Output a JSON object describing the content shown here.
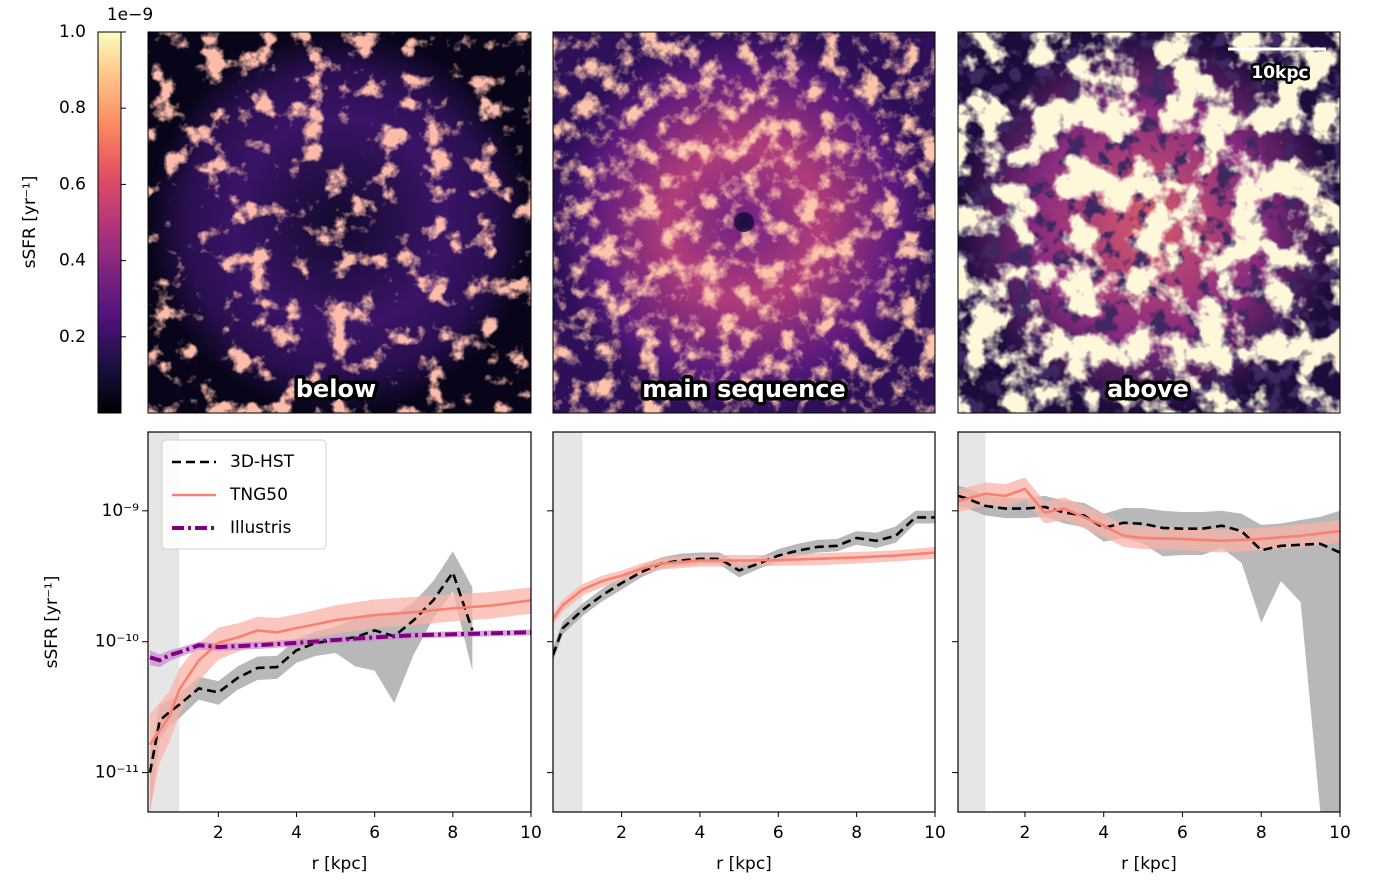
{
  "colorbar": {
    "label": "sSFR [yr⁻¹]",
    "offset_text": "1e−9",
    "clim": [
      0,
      1
    ],
    "ticks": [
      0.2,
      0.4,
      0.6,
      0.8,
      {
        "value": 1,
        "label": "1.0"
      }
    ],
    "colormap": "magma"
  },
  "maps": [
    {
      "label": "below"
    },
    {
      "label": "main sequence"
    },
    {
      "label": "above",
      "scale_bar": "10kpc"
    }
  ],
  "chart_data": [
    {
      "type": "line",
      "xlabel": "r [kpc]",
      "ylabel": "sSFR [yr⁻¹]",
      "xlim": [
        0.2,
        10
      ],
      "ylim": [
        5e-12,
        4e-09
      ],
      "yscale": "log",
      "xticks": [
        2,
        4,
        6,
        8,
        10
      ],
      "yticks": [
        {
          "value": 1e-11,
          "label": "10⁻¹¹"
        },
        {
          "value": 1e-10,
          "label": "10⁻¹⁰"
        },
        {
          "value": 1e-09,
          "label": "10⁻⁹"
        }
      ],
      "shaded_region": [
        0,
        1
      ],
      "legend": "upper left",
      "series": [
        {
          "name": "3D-HST",
          "color": "#000000",
          "band_color": "#a0a0a0",
          "style": "dashed",
          "x": [
            0.25,
            0.5,
            0.75,
            1,
            1.5,
            2,
            2.5,
            3,
            3.5,
            4,
            4.5,
            5,
            5.5,
            6,
            6.5,
            7,
            7.5,
            8,
            8.5
          ],
          "values": [
            1e-11,
            2.5e-11,
            2.9e-11,
            3.3e-11,
            4.4e-11,
            4.1e-11,
            5.3e-11,
            6.3e-11,
            6.4e-11,
            8.6e-11,
            9.8e-11,
            1.03e-10,
            1.08e-10,
            1.22e-10,
            1.1e-10,
            1.46e-10,
            2.07e-10,
            3.38e-10,
            1.22e-10
          ],
          "lower": [
            5e-12,
            1.8e-11,
            2.3e-11,
            2.6e-11,
            3.6e-11,
            3.3e-11,
            4.3e-11,
            5.1e-11,
            5.2e-11,
            6.9e-11,
            7.8e-11,
            8.2e-11,
            6.5e-11,
            6e-11,
            3.4e-11,
            8e-11,
            1.5e-10,
            2.4e-10,
            6e-11
          ],
          "upper": [
            1.4e-11,
            3.3e-11,
            3.6e-11,
            4e-11,
            5.4e-11,
            5e-11,
            6.5e-11,
            7.7e-11,
            7.8e-11,
            1.05e-10,
            1.2e-10,
            1.3e-10,
            1.5e-10,
            1.6e-10,
            1.6e-10,
            2e-10,
            2.9e-10,
            4.9e-10,
            2.6e-10
          ]
        },
        {
          "name": "TNG50",
          "color": "#fa8072",
          "band_color": "#f9b3a8",
          "style": "solid",
          "x": [
            0.25,
            0.5,
            0.75,
            1,
            1.5,
            2,
            2.5,
            3,
            3.5,
            4,
            4.5,
            5,
            6,
            7,
            8,
            9,
            10
          ],
          "values": [
            1.63e-11,
            2.1e-11,
            2.7e-11,
            4.3e-11,
            7.2e-11,
            9.8e-11,
            1.08e-10,
            1.22e-10,
            1.18e-10,
            1.27e-10,
            1.36e-10,
            1.46e-10,
            1.6e-10,
            1.68e-10,
            1.8e-10,
            1.89e-10,
            2.07e-10
          ],
          "lower": [
            5e-12,
            1.2e-11,
            1.7e-11,
            2.8e-11,
            5e-11,
            7.3e-11,
            8.4e-11,
            9.6e-11,
            9.4e-11,
            1.01e-10,
            1.08e-10,
            1.15e-10,
            1.27e-10,
            1.34e-10,
            1.43e-10,
            1.5e-10,
            1.64e-10
          ],
          "upper": [
            2.8e-11,
            3.4e-11,
            4.2e-11,
            6.2e-11,
            9.8e-11,
            1.28e-10,
            1.38e-10,
            1.55e-10,
            1.52e-10,
            1.62e-10,
            1.75e-10,
            1.9e-10,
            2.1e-10,
            2.2e-10,
            2.3e-10,
            2.4e-10,
            2.6e-10
          ]
        },
        {
          "name": "Illustris",
          "color": "#800080",
          "band_color": "#c98ccf",
          "style": "dashdot",
          "x": [
            0.25,
            0.5,
            0.75,
            1,
            1.5,
            2,
            3,
            4,
            5,
            6,
            7,
            8,
            9,
            10
          ],
          "values": [
            7.6e-11,
            7.2e-11,
            7.9e-11,
            8.3e-11,
            9.4e-11,
            9.1e-11,
            9.4e-11,
            9.8e-11,
            1.03e-10,
            1.08e-10,
            1.12e-10,
            1.14e-10,
            1.16e-10,
            1.18e-10
          ],
          "lower": [
            6.6e-11,
            6.4e-11,
            7.1e-11,
            7.6e-11,
            8.7e-11,
            8.5e-11,
            8.8e-11,
            9.2e-11,
            9.7e-11,
            1.02e-10,
            1.06e-10,
            1.08e-10,
            1.1e-10,
            1.12e-10
          ],
          "upper": [
            8.6e-11,
            8e-11,
            8.6e-11,
            9e-11,
            1e-10,
            9.7e-11,
            1e-10,
            1.04e-10,
            1.09e-10,
            1.14e-10,
            1.18e-10,
            1.2e-10,
            1.22e-10,
            1.24e-10
          ]
        }
      ]
    },
    {
      "type": "line",
      "xlabel": "r [kpc]",
      "xlim": [
        0.25,
        10
      ],
      "ylim": [
        5e-12,
        4e-09
      ],
      "yscale": "log",
      "xticks": [
        2,
        4,
        6,
        8,
        10
      ],
      "yticks": [
        1e-11,
        1e-10,
        1e-09
      ],
      "shaded_region": [
        0,
        1
      ],
      "series": [
        {
          "color": "#000000",
          "band_color": "#a0a0a0",
          "style": "dashed",
          "x": [
            0.25,
            0.5,
            1,
            1.5,
            2,
            2.5,
            3,
            3.5,
            4,
            4.5,
            5,
            5.5,
            6,
            6.5,
            7,
            7.5,
            8,
            8.5,
            9,
            9.5,
            10
          ],
          "values": [
            7.9e-11,
            1.27e-10,
            1.74e-10,
            2.26e-10,
            2.8e-10,
            3.4e-10,
            3.95e-10,
            4.17e-10,
            4.3e-10,
            4.3e-10,
            3.5e-10,
            3.95e-10,
            4.55e-10,
            4.96e-10,
            5.3e-10,
            5.4e-10,
            6.2e-10,
            5.9e-10,
            6.45e-10,
            8.9e-10,
            8.9e-10
          ],
          "lower": [
            7.1e-11,
            1.14e-10,
            1.57e-10,
            2.03e-10,
            2.5e-10,
            3.1e-10,
            3.6e-10,
            3.8e-10,
            3.9e-10,
            3.9e-10,
            3.1e-10,
            3.6e-10,
            4.1e-10,
            4.5e-10,
            4.8e-10,
            4.9e-10,
            5.5e-10,
            5.2e-10,
            5.7e-10,
            8e-10,
            8e-10
          ],
          "upper": [
            8.9e-11,
            1.42e-10,
            1.95e-10,
            2.53e-10,
            3.1e-10,
            3.8e-10,
            4.4e-10,
            4.7e-10,
            4.8e-10,
            4.8e-10,
            4e-10,
            4.4e-10,
            5.1e-10,
            5.6e-10,
            6e-10,
            6.1e-10,
            7e-10,
            6.8e-10,
            7.6e-10,
            1e-09,
            1e-09
          ]
        },
        {
          "color": "#fa8072",
          "band_color": "#f9b3a8",
          "style": "solid",
          "x": [
            0.25,
            0.5,
            1,
            1.5,
            2,
            2.5,
            3,
            4,
            5,
            6,
            7,
            8,
            9,
            10
          ],
          "values": [
            1.5e-10,
            1.9e-10,
            2.5e-10,
            2.9e-10,
            3.2e-10,
            3.6e-10,
            3.95e-10,
            4.17e-10,
            4.17e-10,
            4.2e-10,
            4.3e-10,
            4.4e-10,
            4.55e-10,
            4.8e-10
          ],
          "lower": [
            1.35e-10,
            1.7e-10,
            2.25e-10,
            2.6e-10,
            2.9e-10,
            3.25e-10,
            3.55e-10,
            3.75e-10,
            3.75e-10,
            3.8e-10,
            3.85e-10,
            3.95e-10,
            4.1e-10,
            4.3e-10
          ],
          "upper": [
            1.65e-10,
            2.1e-10,
            2.75e-10,
            3.2e-10,
            3.5e-10,
            3.95e-10,
            4.35e-10,
            4.6e-10,
            4.6e-10,
            4.6e-10,
            4.75e-10,
            4.85e-10,
            5e-10,
            5.3e-10
          ]
        }
      ]
    },
    {
      "type": "line",
      "xlabel": "r [kpc]",
      "xlim": [
        0.3,
        10
      ],
      "ylim": [
        5e-12,
        4e-09
      ],
      "yscale": "log",
      "xticks": [
        2,
        4,
        6,
        8,
        10
      ],
      "yticks": [
        1e-11,
        1e-10,
        1e-09
      ],
      "shaded_region": [
        0,
        1
      ],
      "series": [
        {
          "color": "#000000",
          "band_color": "#a0a0a0",
          "style": "dashed",
          "x": [
            0.3,
            0.5,
            1,
            1.5,
            2,
            2.5,
            3,
            3.5,
            4,
            4.5,
            5,
            5.5,
            6,
            6.5,
            7,
            7.5,
            8,
            8.5,
            9,
            9.5,
            10
          ],
          "values": [
            1.3e-09,
            1.25e-09,
            1.09e-09,
            1.04e-09,
            1.04e-09,
            1.07e-09,
            9.7e-10,
            9.2e-10,
            7.4e-10,
            8.1e-10,
            7.96e-10,
            7.4e-10,
            7.3e-10,
            7.3e-10,
            7.7e-10,
            7e-10,
            5e-10,
            5.4e-10,
            5.5e-10,
            5.6e-10,
            4.8e-10
          ],
          "lower": [
            1.1e-09,
            1.05e-09,
            9.2e-10,
            8.8e-10,
            8.8e-10,
            9e-10,
            8e-10,
            7.5e-10,
            5.8e-10,
            6.2e-10,
            5.6e-10,
            4.5e-10,
            4.6e-10,
            4.6e-10,
            5.2e-10,
            4e-10,
            1.4e-10,
            2.9e-10,
            2e-10,
            5e-12,
            5e-12
          ],
          "upper": [
            1.55e-09,
            1.5e-09,
            1.3e-09,
            1.25e-09,
            1.25e-09,
            1.3e-09,
            1.2e-09,
            1.15e-09,
            9.5e-10,
            1.05e-09,
            1.05e-09,
            1e-09,
            9.8e-10,
            9.8e-10,
            1e-09,
            9.5e-10,
            7.8e-10,
            8e-10,
            8.5e-10,
            9e-10,
            1e-09
          ]
        },
        {
          "color": "#fa8072",
          "band_color": "#f9b3a8",
          "style": "solid",
          "x": [
            0.3,
            1,
            1.5,
            2,
            2.5,
            3,
            4,
            4.5,
            5,
            6,
            7,
            8,
            9,
            10
          ],
          "values": [
            1.19e-09,
            1.35e-09,
            1.3e-09,
            1.47e-09,
            9.7e-10,
            1.04e-09,
            7.7e-10,
            6.45e-10,
            6.2e-10,
            6.1e-10,
            5.9e-10,
            6.1e-10,
            6.45e-10,
            7e-10
          ],
          "lower": [
            9.8e-10,
            1.1e-09,
            1.07e-09,
            1.2e-09,
            8e-10,
            8.5e-10,
            6.3e-10,
            5.3e-10,
            5.1e-10,
            5e-10,
            4.8e-10,
            5e-10,
            5.3e-10,
            5.7e-10
          ],
          "upper": [
            1.45e-09,
            1.65e-09,
            1.6e-09,
            1.8e-09,
            1.18e-09,
            1.27e-09,
            9.4e-10,
            7.9e-10,
            7.6e-10,
            7.4e-10,
            7.2e-10,
            7.4e-10,
            7.9e-10,
            8.5e-10
          ]
        }
      ]
    }
  ]
}
